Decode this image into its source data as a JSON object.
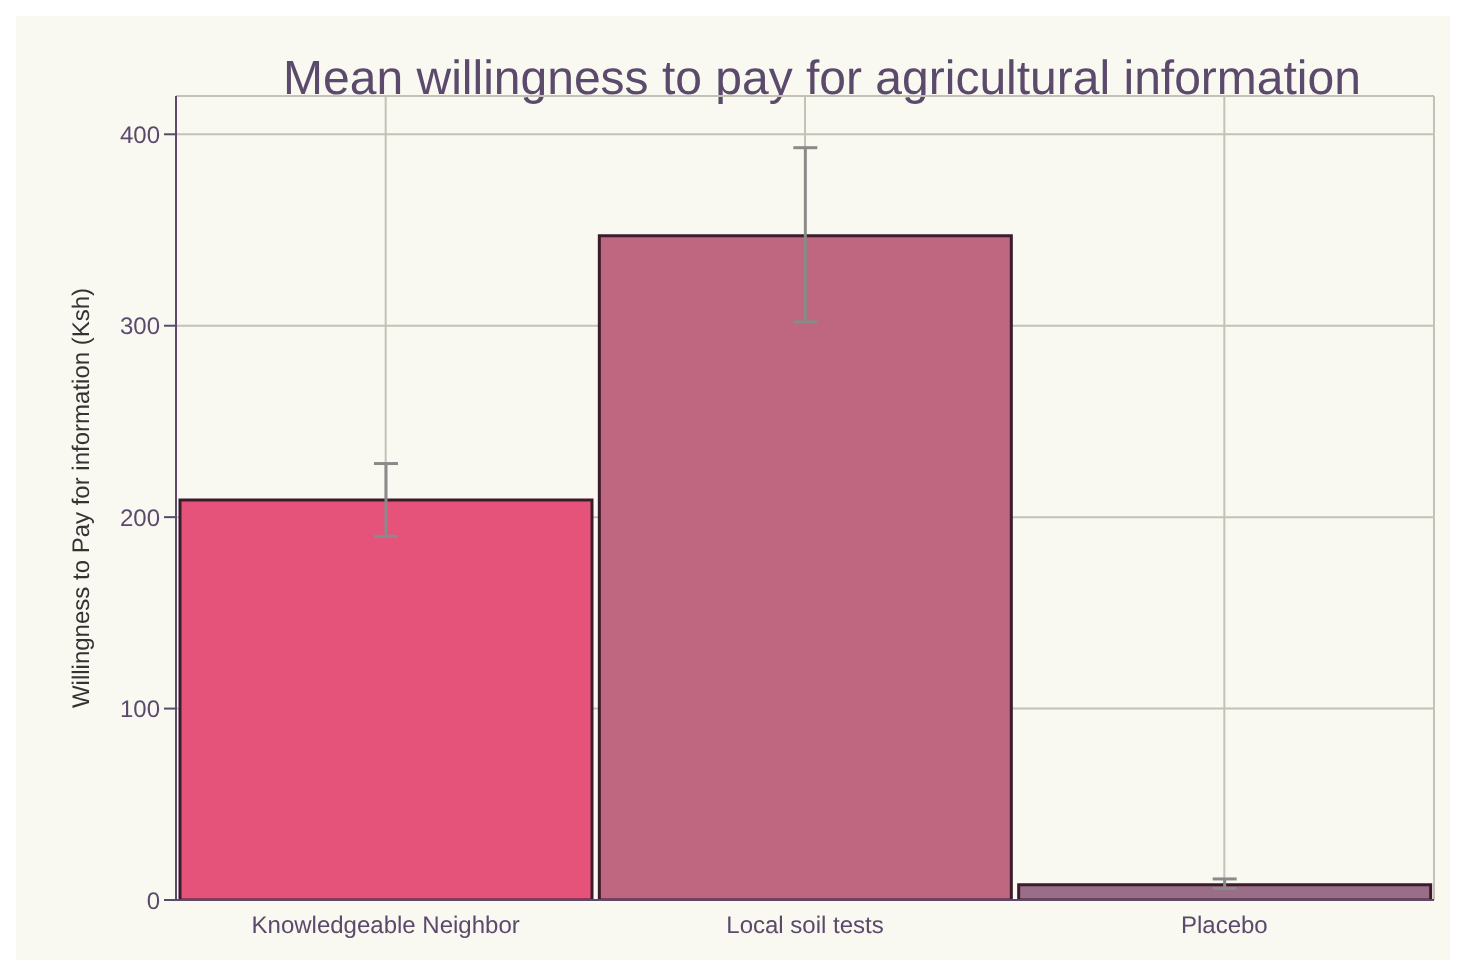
{
  "chart_data": {
    "type": "bar",
    "title": "Mean willingness to pay for agricultural information",
    "ylabel": "Willingness to Pay for information (Ksh)",
    "categories": [
      "Knowledgeable Neighbor",
      "Local soil tests",
      "Placebo"
    ],
    "values": [
      209,
      347,
      8
    ],
    "colors": [
      "#e5537b",
      "#bf6781",
      "#9a6e87"
    ],
    "errors": [
      [
        190,
        228
      ],
      [
        302,
        393
      ],
      [
        6,
        11
      ]
    ],
    "ylim": [
      0,
      420
    ],
    "yticks": [
      0,
      100,
      200,
      300,
      400
    ],
    "grid": true
  }
}
